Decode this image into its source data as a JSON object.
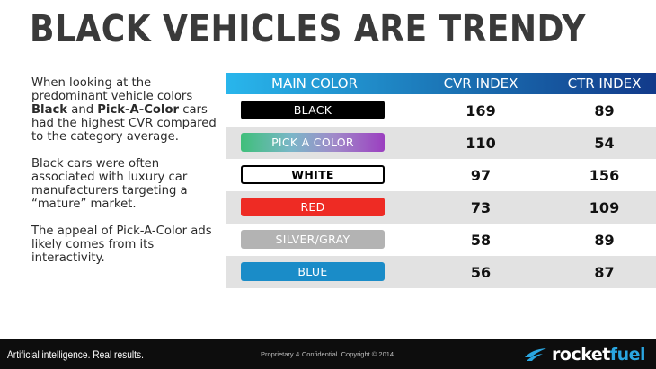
{
  "slide": {
    "title": "BLACK VEHICLES ARE TRENDY"
  },
  "body": {
    "para1": {
      "lead": "When looking at the predominant vehicle colors ",
      "bold1": "Black",
      "mid": " and ",
      "bold2": "Pick-A-Color",
      "tail": " cars had the highest CVR compared to the category average."
    },
    "para2": "Black cars were often associated with luxury car manufacturers targeting a “mature” market.",
    "para3": "The appeal of Pick-A-Color ads likely comes from its interactivity."
  },
  "table": {
    "headers": {
      "color": "MAIN COLOR",
      "cvr": "CVR INDEX",
      "ctr": "CTR INDEX"
    },
    "rows": [
      {
        "color": "BLACK",
        "cvr": "169",
        "ctr": "89",
        "swatch_bg": "#000000",
        "swatch_text": "#ffffff"
      },
      {
        "color": "PICK A COLOR",
        "cvr": "110",
        "ctr": "54",
        "swatch_bg": "gradient",
        "swatch_text": "#ffffff"
      },
      {
        "color": "WHITE",
        "cvr": "97",
        "ctr": "156",
        "swatch_bg": "#ffffff",
        "swatch_text": "#000000"
      },
      {
        "color": "RED",
        "cvr": "73",
        "ctr": "109",
        "swatch_bg": "#ee2b24",
        "swatch_text": "#ffffff"
      },
      {
        "color": "SILVER/GRAY",
        "cvr": "58",
        "ctr": "89",
        "swatch_bg": "#b3b3b3",
        "swatch_text": "#ffffff"
      },
      {
        "color": "BLUE",
        "cvr": "56",
        "ctr": "87",
        "swatch_bg": "#1a8cc8",
        "swatch_text": "#ffffff"
      }
    ]
  },
  "footer": {
    "tagline": "Artificial intelligence. Real results.",
    "copyright": "Proprietary & Confidential. Copyright © 2014.",
    "logo_part1": "rocket",
    "logo_part2": "fuel"
  },
  "colors": {
    "header_gradient_start": "#29b6ec",
    "header_gradient_end": "#123a8a",
    "logo_accent": "#2aa6e0"
  }
}
